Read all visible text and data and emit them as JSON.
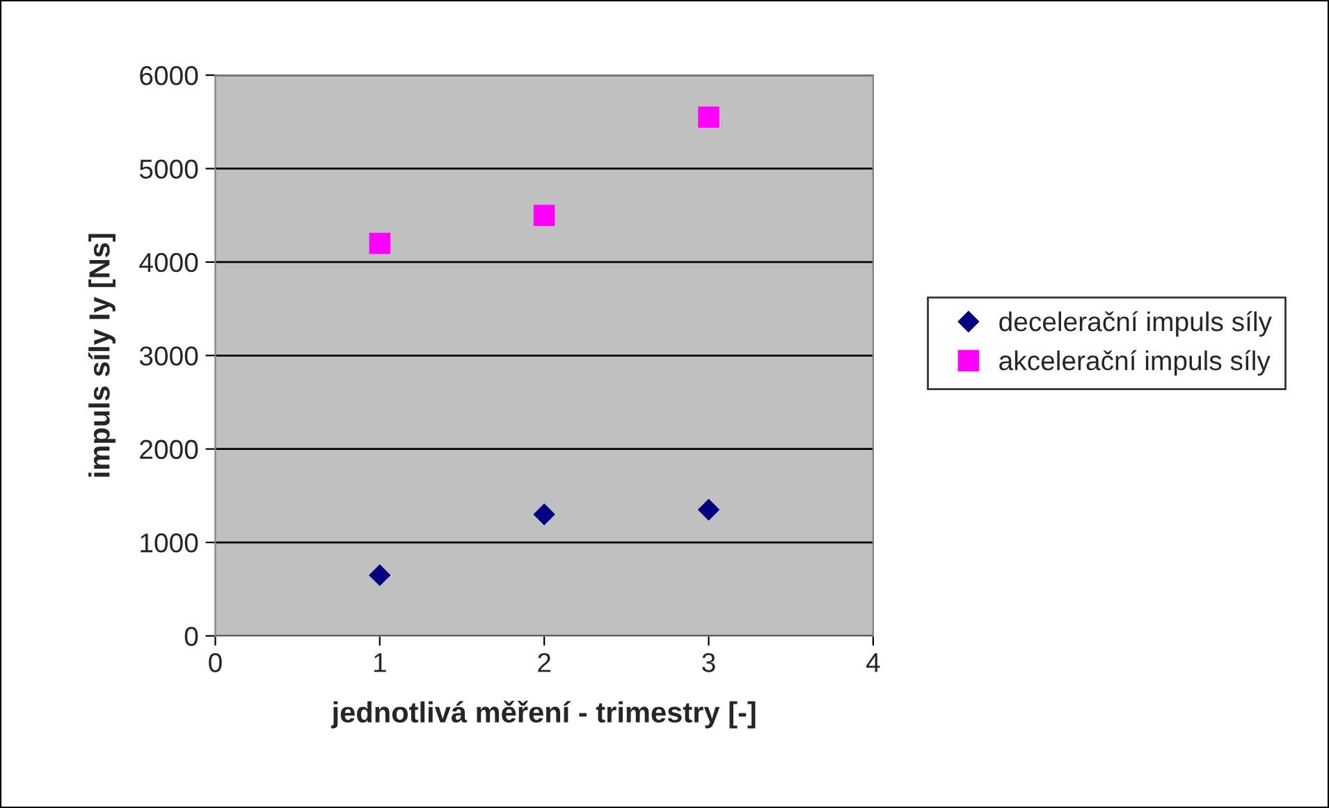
{
  "chart_data": {
    "type": "scatter",
    "xlabel": "jednotlivá měření - trimestry [-]",
    "ylabel": "impuls síly Iy [Ns]",
    "x": [
      1,
      2,
      3
    ],
    "series": [
      {
        "name": "decelerační impuls síly",
        "color": "#000080",
        "marker": "diamond",
        "values": [
          650,
          1300,
          1350
        ]
      },
      {
        "name": "akcelerační impuls síly",
        "color": "#ff00ff",
        "marker": "square",
        "values": [
          4200,
          4500,
          5550
        ]
      }
    ],
    "xlim": [
      0,
      4
    ],
    "xticks": [
      0,
      1,
      2,
      3,
      4
    ],
    "ylim": [
      0,
      6000
    ],
    "yticks": [
      0,
      1000,
      2000,
      3000,
      4000,
      5000,
      6000
    ],
    "grid": "y",
    "legend": "right"
  }
}
